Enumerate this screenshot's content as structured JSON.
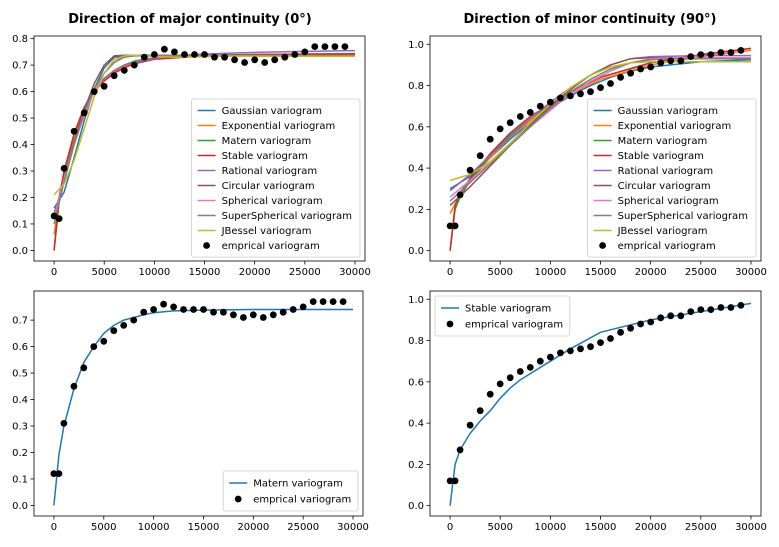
{
  "titles": {
    "left": "Direction of major continuity (0°)",
    "right": "Direction of minor continuity (90°)"
  },
  "chart_data": [
    {
      "type": "line",
      "panel": "top-left",
      "xlim": [
        -2000,
        31000
      ],
      "ylim": [
        -0.04,
        0.81
      ],
      "xticks": [
        0,
        5000,
        10000,
        15000,
        20000,
        25000,
        30000
      ],
      "yticks": [
        0.0,
        0.1,
        0.2,
        0.3,
        0.4,
        0.5,
        0.6,
        0.7,
        0.8
      ],
      "legend_position": "center-right",
      "series": [
        {
          "name": "Gaussian variogram",
          "color": "#1f77b4",
          "x": [
            0,
            1000,
            2000,
            3000,
            4000,
            5000,
            6000,
            7000,
            8000,
            10000,
            15000,
            20000,
            25000,
            30000
          ],
          "y": [
            0.16,
            0.22,
            0.35,
            0.49,
            0.61,
            0.69,
            0.73,
            0.735,
            0.736,
            0.737,
            0.737,
            0.737,
            0.737,
            0.737
          ]
        },
        {
          "name": "Exponential variogram",
          "color": "#ff7f0e",
          "x": [
            0,
            500,
            1000,
            2000,
            3000,
            4000,
            5000,
            6000,
            7000,
            8000,
            10000,
            15000,
            20000,
            25000,
            30000
          ],
          "y": [
            0.06,
            0.19,
            0.29,
            0.43,
            0.53,
            0.6,
            0.645,
            0.675,
            0.695,
            0.71,
            0.725,
            0.735,
            0.738,
            0.739,
            0.74
          ]
        },
        {
          "name": "Matern variogram",
          "color": "#2ca02c",
          "x": [
            0,
            500,
            1000,
            2000,
            3000,
            4000,
            5000,
            6000,
            7000,
            8000,
            10000,
            12000,
            15000,
            20000,
            25000,
            30000
          ],
          "y": [
            0.0,
            0.18,
            0.29,
            0.44,
            0.54,
            0.61,
            0.65,
            0.68,
            0.7,
            0.715,
            0.728,
            0.734,
            0.738,
            0.74,
            0.74,
            0.74
          ]
        },
        {
          "name": "Stable variogram",
          "color": "#d62728",
          "x": [
            0,
            500,
            1000,
            2000,
            3000,
            4000,
            5000,
            6000,
            7000,
            8000,
            10000,
            15000,
            20000,
            25000,
            30000
          ],
          "y": [
            0.0,
            0.2,
            0.3,
            0.44,
            0.54,
            0.6,
            0.64,
            0.67,
            0.69,
            0.705,
            0.722,
            0.735,
            0.74,
            0.742,
            0.743
          ]
        },
        {
          "name": "Rational variogram",
          "color": "#9467bd",
          "x": [
            0,
            1000,
            2000,
            3000,
            4000,
            5000,
            6000,
            7000,
            8000,
            10000,
            12000,
            15000,
            20000,
            25000,
            30000
          ],
          "y": [
            0.14,
            0.26,
            0.4,
            0.52,
            0.6,
            0.65,
            0.68,
            0.7,
            0.71,
            0.725,
            0.735,
            0.742,
            0.748,
            0.752,
            0.755
          ]
        },
        {
          "name": "Circular variogram",
          "color": "#8c564b",
          "x": [
            0,
            1000,
            2000,
            3000,
            4000,
            5000,
            6000,
            7000,
            30000
          ],
          "y": [
            0.12,
            0.27,
            0.41,
            0.53,
            0.63,
            0.7,
            0.735,
            0.737,
            0.737
          ]
        },
        {
          "name": "Spherical variogram",
          "color": "#e377c2",
          "x": [
            0,
            1000,
            2000,
            3000,
            4000,
            5000,
            6000,
            7000,
            7500,
            30000
          ],
          "y": [
            0.12,
            0.27,
            0.4,
            0.51,
            0.6,
            0.67,
            0.71,
            0.733,
            0.736,
            0.736
          ]
        },
        {
          "name": "SuperSpherical variogram",
          "color": "#7f7f7f",
          "x": [
            0,
            1000,
            2000,
            3000,
            4000,
            5000,
            6000,
            7000,
            8000,
            30000
          ],
          "y": [
            0.1,
            0.26,
            0.4,
            0.52,
            0.61,
            0.67,
            0.71,
            0.73,
            0.735,
            0.735
          ]
        },
        {
          "name": "JBessel variogram",
          "color": "#bcbd22",
          "x": [
            0,
            1000,
            2000,
            3000,
            4000,
            5000,
            6000,
            7000,
            8000,
            9000,
            10000,
            12000,
            14000,
            16000,
            18000,
            20000,
            22000,
            25000,
            30000
          ],
          "y": [
            0.21,
            0.25,
            0.34,
            0.46,
            0.58,
            0.67,
            0.72,
            0.735,
            0.738,
            0.735,
            0.732,
            0.73,
            0.731,
            0.733,
            0.734,
            0.734,
            0.733,
            0.733,
            0.733
          ]
        }
      ],
      "scatter": {
        "name": "emprical variogram",
        "color": "#000000",
        "x": [
          0,
          500,
          1000,
          2000,
          3000,
          4000,
          5000,
          6000,
          7000,
          8000,
          9000,
          10000,
          11000,
          12000,
          13000,
          14000,
          15000,
          16000,
          17000,
          18000,
          19000,
          20000,
          21000,
          22000,
          23000,
          24000,
          25000,
          26000,
          27000,
          28000,
          29000
        ],
        "y": [
          0.13,
          0.12,
          0.31,
          0.45,
          0.52,
          0.6,
          0.62,
          0.66,
          0.68,
          0.7,
          0.73,
          0.74,
          0.76,
          0.75,
          0.74,
          0.74,
          0.74,
          0.73,
          0.73,
          0.72,
          0.71,
          0.72,
          0.71,
          0.72,
          0.73,
          0.74,
          0.75,
          0.77,
          0.77,
          0.77,
          0.77
        ]
      }
    },
    {
      "type": "line",
      "panel": "top-right",
      "xlim": [
        -2000,
        31000
      ],
      "ylim": [
        -0.05,
        1.04
      ],
      "xticks": [
        0,
        5000,
        10000,
        15000,
        20000,
        25000,
        30000
      ],
      "yticks": [
        0.0,
        0.2,
        0.4,
        0.6,
        0.8,
        1.0
      ],
      "legend_position": "center-right",
      "series": [
        {
          "name": "Gaussian variogram",
          "color": "#1f77b4",
          "x": [
            0,
            2000,
            4000,
            6000,
            8000,
            10000,
            12000,
            14000,
            16000,
            18000,
            20000,
            22000,
            25000,
            30000
          ],
          "y": [
            0.3,
            0.36,
            0.45,
            0.54,
            0.62,
            0.69,
            0.75,
            0.8,
            0.84,
            0.87,
            0.89,
            0.9,
            0.915,
            0.925
          ]
        },
        {
          "name": "Exponential variogram",
          "color": "#ff7f0e",
          "x": [
            0,
            1000,
            2000,
            4000,
            6000,
            8000,
            10000,
            12000,
            15000,
            20000,
            25000,
            30000
          ],
          "y": [
            0.18,
            0.27,
            0.34,
            0.45,
            0.55,
            0.63,
            0.7,
            0.76,
            0.83,
            0.9,
            0.94,
            0.97
          ]
        },
        {
          "name": "Matern variogram",
          "color": "#2ca02c",
          "x": [
            0,
            500,
            1000,
            2000,
            4000,
            6000,
            8000,
            10000,
            12000,
            15000,
            20000,
            25000,
            30000
          ],
          "y": [
            0.0,
            0.2,
            0.26,
            0.34,
            0.46,
            0.56,
            0.64,
            0.71,
            0.77,
            0.84,
            0.91,
            0.95,
            0.98
          ]
        },
        {
          "name": "Stable variogram",
          "color": "#d62728",
          "x": [
            0,
            500,
            1000,
            2000,
            4000,
            6000,
            8000,
            10000,
            12000,
            15000,
            20000,
            25000,
            30000
          ],
          "y": [
            0.0,
            0.22,
            0.28,
            0.35,
            0.47,
            0.57,
            0.65,
            0.71,
            0.77,
            0.84,
            0.91,
            0.95,
            0.98
          ]
        },
        {
          "name": "Rational variogram",
          "color": "#9467bd",
          "x": [
            0,
            2000,
            4000,
            6000,
            8000,
            10000,
            12000,
            14000,
            16000,
            18000,
            20000,
            25000,
            30000
          ],
          "y": [
            0.29,
            0.37,
            0.46,
            0.55,
            0.64,
            0.72,
            0.79,
            0.85,
            0.9,
            0.93,
            0.94,
            0.945,
            0.945
          ]
        },
        {
          "name": "Circular variogram",
          "color": "#8c564b",
          "x": [
            0,
            2000,
            4000,
            6000,
            8000,
            10000,
            12000,
            14000,
            16000,
            18000,
            20000,
            30000
          ],
          "y": [
            0.22,
            0.31,
            0.41,
            0.51,
            0.61,
            0.7,
            0.78,
            0.85,
            0.9,
            0.93,
            0.935,
            0.935
          ]
        },
        {
          "name": "Spherical variogram",
          "color": "#e377c2",
          "x": [
            0,
            2000,
            4000,
            6000,
            8000,
            10000,
            12000,
            14000,
            16000,
            18000,
            20000,
            22000,
            30000
          ],
          "y": [
            0.26,
            0.34,
            0.43,
            0.52,
            0.6,
            0.68,
            0.76,
            0.82,
            0.87,
            0.91,
            0.93,
            0.935,
            0.935
          ]
        },
        {
          "name": "SuperSpherical variogram",
          "color": "#7f7f7f",
          "x": [
            0,
            2000,
            4000,
            6000,
            8000,
            10000,
            12000,
            14000,
            16000,
            18000,
            20000,
            22000,
            30000
          ],
          "y": [
            0.24,
            0.33,
            0.42,
            0.51,
            0.6,
            0.69,
            0.77,
            0.83,
            0.88,
            0.91,
            0.925,
            0.93,
            0.93
          ]
        },
        {
          "name": "JBessel variogram",
          "color": "#bcbd22",
          "x": [
            0,
            2000,
            4000,
            6000,
            8000,
            10000,
            12000,
            14000,
            16000,
            18000,
            20000,
            22000,
            25000,
            30000
          ],
          "y": [
            0.34,
            0.37,
            0.43,
            0.52,
            0.62,
            0.71,
            0.79,
            0.85,
            0.89,
            0.91,
            0.915,
            0.915,
            0.915,
            0.915
          ]
        }
      ],
      "scatter": {
        "name": "emprical variogram",
        "color": "#000000",
        "x": [
          0,
          500,
          1000,
          2000,
          3000,
          4000,
          5000,
          6000,
          7000,
          8000,
          9000,
          10000,
          11000,
          12000,
          13000,
          14000,
          15000,
          16000,
          17000,
          18000,
          19000,
          20000,
          21000,
          22000,
          23000,
          24000,
          25000,
          26000,
          27000,
          28000,
          29000
        ],
        "y": [
          0.12,
          0.12,
          0.27,
          0.39,
          0.46,
          0.54,
          0.59,
          0.62,
          0.65,
          0.67,
          0.7,
          0.72,
          0.74,
          0.75,
          0.76,
          0.77,
          0.79,
          0.81,
          0.84,
          0.86,
          0.88,
          0.89,
          0.91,
          0.92,
          0.92,
          0.94,
          0.95,
          0.95,
          0.96,
          0.96,
          0.97
        ]
      }
    },
    {
      "type": "line",
      "panel": "bottom-left",
      "xlim": [
        -2000,
        31000
      ],
      "ylim": [
        -0.04,
        0.81
      ],
      "xticks": [
        0,
        5000,
        10000,
        15000,
        20000,
        25000,
        30000
      ],
      "yticks": [
        0.0,
        0.1,
        0.2,
        0.3,
        0.4,
        0.5,
        0.6,
        0.7
      ],
      "legend_position": "lower-right",
      "series": [
        {
          "name": "Matern variogram",
          "color": "#1f77b4",
          "x": [
            0,
            500,
            1000,
            2000,
            3000,
            4000,
            5000,
            6000,
            7000,
            8000,
            9000,
            10000,
            12000,
            15000,
            20000,
            25000,
            30000
          ],
          "y": [
            0.0,
            0.19,
            0.3,
            0.44,
            0.54,
            0.6,
            0.65,
            0.68,
            0.7,
            0.71,
            0.72,
            0.728,
            0.735,
            0.738,
            0.74,
            0.74,
            0.74
          ]
        }
      ],
      "scatter": {
        "name": "emprical variogram",
        "color": "#000000",
        "x": [
          0,
          500,
          1000,
          2000,
          3000,
          4000,
          5000,
          6000,
          7000,
          8000,
          9000,
          10000,
          11000,
          12000,
          13000,
          14000,
          15000,
          16000,
          17000,
          18000,
          19000,
          20000,
          21000,
          22000,
          23000,
          24000,
          25000,
          26000,
          27000,
          28000,
          29000
        ],
        "y": [
          0.12,
          0.12,
          0.31,
          0.45,
          0.52,
          0.6,
          0.62,
          0.66,
          0.68,
          0.7,
          0.73,
          0.74,
          0.76,
          0.75,
          0.74,
          0.74,
          0.74,
          0.73,
          0.73,
          0.72,
          0.71,
          0.72,
          0.71,
          0.72,
          0.73,
          0.74,
          0.75,
          0.77,
          0.77,
          0.77,
          0.77
        ]
      }
    },
    {
      "type": "line",
      "panel": "bottom-right",
      "xlim": [
        -2000,
        31000
      ],
      "ylim": [
        -0.05,
        1.04
      ],
      "xticks": [
        0,
        5000,
        10000,
        15000,
        20000,
        25000,
        30000
      ],
      "yticks": [
        0.0,
        0.2,
        0.4,
        0.6,
        0.8,
        1.0
      ],
      "legend_position": "upper-left",
      "series": [
        {
          "name": "Stable variogram",
          "color": "#1f77b4",
          "x": [
            0,
            500,
            1000,
            2000,
            3000,
            4000,
            5000,
            6000,
            7000,
            8000,
            10000,
            12000,
            15000,
            20000,
            25000,
            30000
          ],
          "y": [
            0.0,
            0.2,
            0.27,
            0.35,
            0.41,
            0.46,
            0.52,
            0.57,
            0.61,
            0.64,
            0.7,
            0.76,
            0.84,
            0.9,
            0.94,
            0.98
          ]
        }
      ],
      "scatter": {
        "name": "emprical variogram",
        "color": "#000000",
        "x": [
          0,
          500,
          1000,
          2000,
          3000,
          4000,
          5000,
          6000,
          7000,
          8000,
          9000,
          10000,
          11000,
          12000,
          13000,
          14000,
          15000,
          16000,
          17000,
          18000,
          19000,
          20000,
          21000,
          22000,
          23000,
          24000,
          25000,
          26000,
          27000,
          28000,
          29000
        ],
        "y": [
          0.12,
          0.12,
          0.27,
          0.39,
          0.46,
          0.54,
          0.59,
          0.62,
          0.65,
          0.67,
          0.7,
          0.72,
          0.74,
          0.75,
          0.76,
          0.77,
          0.79,
          0.81,
          0.84,
          0.86,
          0.88,
          0.89,
          0.91,
          0.92,
          0.92,
          0.94,
          0.95,
          0.95,
          0.96,
          0.96,
          0.97
        ]
      }
    }
  ]
}
